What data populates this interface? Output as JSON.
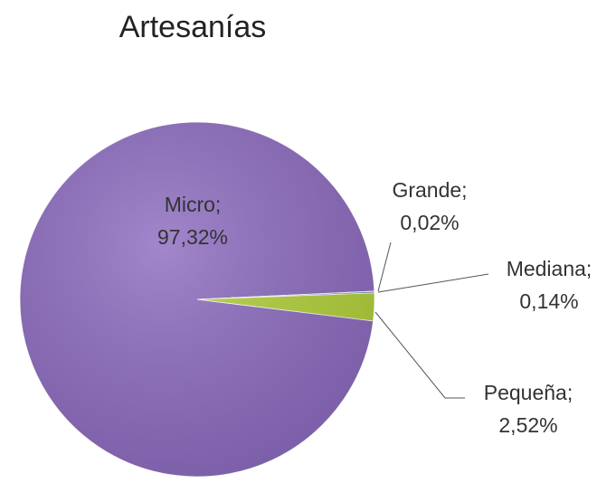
{
  "chart_data": {
    "type": "pie",
    "title": "Artesanías",
    "categories": [
      "Micro;",
      "Grande;",
      "Mediana;",
      "Pequeña;"
    ],
    "values": [
      97.32,
      0.02,
      0.14,
      2.52
    ],
    "value_labels": [
      "97,32%",
      "0,02%",
      "0,14%",
      "2,52%"
    ],
    "colors": [
      "#8d6cc0",
      "#c0504d",
      "#4f81bd",
      "#b3d13c"
    ]
  }
}
